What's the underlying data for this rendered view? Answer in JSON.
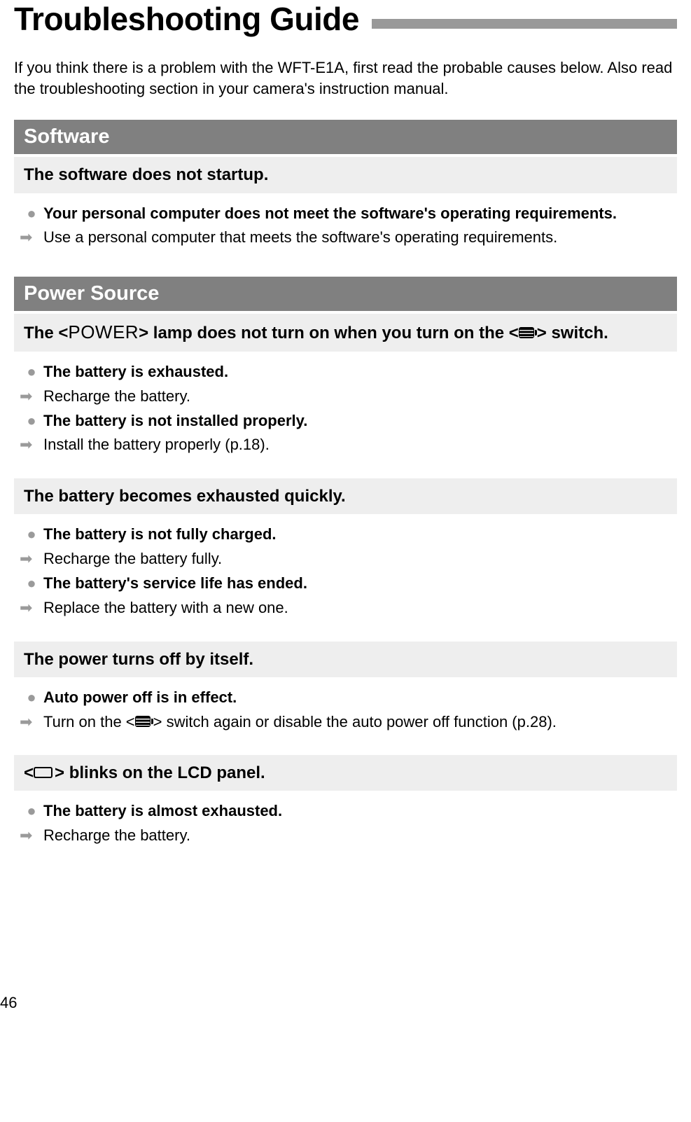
{
  "title": "Troubleshooting Guide",
  "intro": "If you think there is a problem with the WFT-E1A, first read the probable causes below. Also read the troubleshooting section in your camera's instruction manual.",
  "sections": [
    {
      "header": "Software",
      "problems": [
        {
          "title": "The software does not startup.",
          "items": [
            {
              "cause": "Your personal computer does not meet the software's operating requirements.",
              "solution": "Use a personal computer that meets the software's operating requirements."
            }
          ]
        }
      ]
    },
    {
      "header": "Power Source",
      "problems": [
        {
          "title_pre": "The <",
          "title_power": "POWER",
          "title_mid1": "> lamp does not turn on when you turn on the <",
          "title_post1": "> switch.",
          "items": [
            {
              "cause": "The battery is exhausted.",
              "solution": "Recharge the battery."
            },
            {
              "cause": "The battery is not installed properly.",
              "solution": "Install the battery properly (p.18)."
            }
          ]
        },
        {
          "title": "The battery becomes exhausted quickly.",
          "items": [
            {
              "cause": "The battery is not fully charged.",
              "solution": "Recharge the battery fully."
            },
            {
              "cause": "The battery's service life has ended.",
              "solution": "Replace the battery with a new one."
            }
          ]
        },
        {
          "title": "The power turns off by itself.",
          "items": [
            {
              "cause": "Auto power off is in effect.",
              "solution_pre": "Turn on the <",
              "solution_post": "> switch again or disable the auto power off function (p.28)."
            }
          ]
        },
        {
          "title_pre2": "<",
          "title_post2": "> blinks on the LCD panel.",
          "items": [
            {
              "cause": "The battery is almost exhausted.",
              "solution": "Recharge the battery."
            }
          ]
        }
      ]
    }
  ],
  "page_number": "46",
  "colors": {
    "section_bg": "#808080",
    "sub_bg": "#eeeeee",
    "bullet": "#9a9a9a",
    "title_bar": "#999999"
  }
}
